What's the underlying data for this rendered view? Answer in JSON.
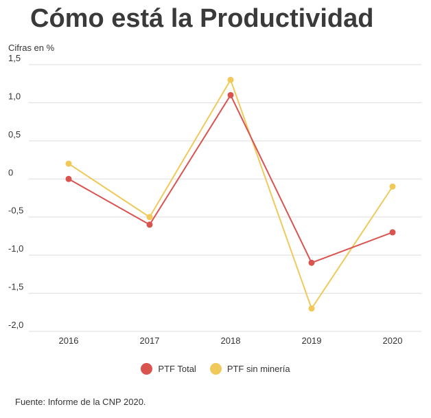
{
  "title": "Cómo está la Productividad",
  "unit_label": "Cifras en %",
  "source": "Fuente: Informe de la CNP 2020.",
  "chart_data": {
    "type": "line",
    "x": [
      "2016",
      "2017",
      "2018",
      "2019",
      "2020"
    ],
    "yticks": [
      "1,5",
      "1,0",
      "0,5",
      "0",
      "-0,5",
      "-1,0",
      "-1,5",
      "-2,0"
    ],
    "ylim": [
      -2.0,
      1.5
    ],
    "grid": true,
    "legend_position": "bottom",
    "series": [
      {
        "name": "PTF Total",
        "color": "#d9534f",
        "values": [
          0.0,
          -0.6,
          1.1,
          -1.1,
          -0.7
        ]
      },
      {
        "name": "PTF sin minería",
        "color": "#f0c95a",
        "values": [
          0.2,
          -0.5,
          1.3,
          -1.7,
          -0.1
        ]
      }
    ]
  }
}
